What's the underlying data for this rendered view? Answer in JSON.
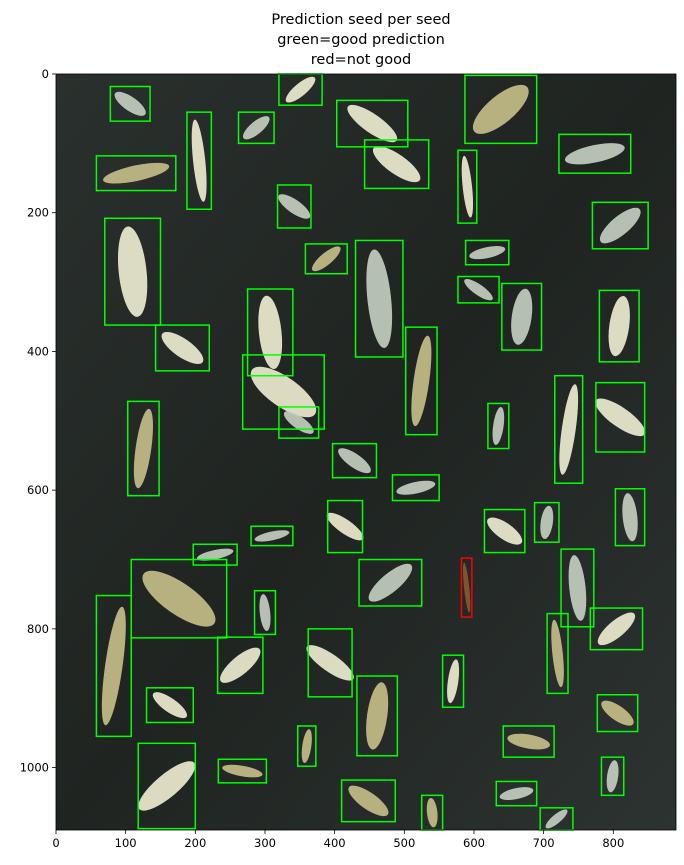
{
  "chart_data": {
    "type": "image-annotation",
    "title_lines": [
      "Prediction seed per seed",
      "green=good prediction",
      "red=not good"
    ],
    "xlim": [
      0,
      890
    ],
    "ylim": [
      1090,
      0
    ],
    "xticks": [
      0,
      100,
      200,
      300,
      400,
      500,
      600,
      700,
      800
    ],
    "yticks": [
      0,
      200,
      400,
      600,
      800,
      1000
    ],
    "colors": {
      "good": "#00ff00",
      "not_good": "#ff0000",
      "background": "#1f2421"
    },
    "boxes": [
      {
        "x0": 78,
        "y0": 18,
        "x1": 135,
        "y1": 68,
        "status": "good",
        "seed": "light"
      },
      {
        "x0": 320,
        "y0": 0,
        "x1": 382,
        "y1": 45,
        "status": "good",
        "seed": "bright"
      },
      {
        "x0": 403,
        "y0": 38,
        "x1": 505,
        "y1": 105,
        "status": "good",
        "seed": "bright"
      },
      {
        "x0": 587,
        "y0": 2,
        "x1": 690,
        "y1": 100,
        "status": "good",
        "seed": "straw"
      },
      {
        "x0": 188,
        "y0": 55,
        "x1": 223,
        "y1": 195,
        "status": "good",
        "seed": "bright"
      },
      {
        "x0": 262,
        "y0": 55,
        "x1": 313,
        "y1": 100,
        "status": "good",
        "seed": "light"
      },
      {
        "x0": 443,
        "y0": 95,
        "x1": 535,
        "y1": 165,
        "status": "good",
        "seed": "bright"
      },
      {
        "x0": 58,
        "y0": 118,
        "x1": 172,
        "y1": 168,
        "status": "good",
        "seed": "straw"
      },
      {
        "x0": 577,
        "y0": 110,
        "x1": 604,
        "y1": 215,
        "status": "good",
        "seed": "bright"
      },
      {
        "x0": 722,
        "y0": 87,
        "x1": 825,
        "y1": 143,
        "status": "good",
        "seed": "light"
      },
      {
        "x0": 318,
        "y0": 160,
        "x1": 366,
        "y1": 222,
        "status": "good",
        "seed": "light"
      },
      {
        "x0": 770,
        "y0": 185,
        "x1": 850,
        "y1": 252,
        "status": "good",
        "seed": "light"
      },
      {
        "x0": 70,
        "y0": 208,
        "x1": 150,
        "y1": 362,
        "status": "good",
        "seed": "bright"
      },
      {
        "x0": 358,
        "y0": 245,
        "x1": 418,
        "y1": 288,
        "status": "good",
        "seed": "straw"
      },
      {
        "x0": 430,
        "y0": 240,
        "x1": 498,
        "y1": 408,
        "status": "good",
        "seed": "light"
      },
      {
        "x0": 588,
        "y0": 240,
        "x1": 650,
        "y1": 275,
        "status": "good",
        "seed": "light"
      },
      {
        "x0": 577,
        "y0": 292,
        "x1": 636,
        "y1": 330,
        "status": "good",
        "seed": "light"
      },
      {
        "x0": 640,
        "y0": 302,
        "x1": 697,
        "y1": 398,
        "status": "good",
        "seed": "light"
      },
      {
        "x0": 275,
        "y0": 310,
        "x1": 340,
        "y1": 435,
        "status": "good",
        "seed": "bright"
      },
      {
        "x0": 780,
        "y0": 312,
        "x1": 837,
        "y1": 415,
        "status": "good",
        "seed": "bright"
      },
      {
        "x0": 143,
        "y0": 362,
        "x1": 220,
        "y1": 428,
        "status": "good",
        "seed": "bright"
      },
      {
        "x0": 502,
        "y0": 365,
        "x1": 547,
        "y1": 520,
        "status": "good",
        "seed": "straw"
      },
      {
        "x0": 268,
        "y0": 405,
        "x1": 385,
        "y1": 512,
        "status": "good",
        "seed": "bright"
      },
      {
        "x0": 716,
        "y0": 435,
        "x1": 756,
        "y1": 590,
        "status": "good",
        "seed": "bright"
      },
      {
        "x0": 775,
        "y0": 445,
        "x1": 845,
        "y1": 545,
        "status": "good",
        "seed": "bright"
      },
      {
        "x0": 103,
        "y0": 472,
        "x1": 148,
        "y1": 608,
        "status": "good",
        "seed": "straw"
      },
      {
        "x0": 320,
        "y0": 480,
        "x1": 377,
        "y1": 525,
        "status": "good",
        "seed": "light"
      },
      {
        "x0": 620,
        "y0": 475,
        "x1": 650,
        "y1": 540,
        "status": "good",
        "seed": "light"
      },
      {
        "x0": 397,
        "y0": 533,
        "x1": 460,
        "y1": 582,
        "status": "good",
        "seed": "light"
      },
      {
        "x0": 483,
        "y0": 578,
        "x1": 550,
        "y1": 615,
        "status": "good",
        "seed": "light"
      },
      {
        "x0": 390,
        "y0": 615,
        "x1": 440,
        "y1": 690,
        "status": "good",
        "seed": "bright"
      },
      {
        "x0": 280,
        "y0": 652,
        "x1": 340,
        "y1": 680,
        "status": "good",
        "seed": "light"
      },
      {
        "x0": 615,
        "y0": 628,
        "x1": 673,
        "y1": 690,
        "status": "good",
        "seed": "bright"
      },
      {
        "x0": 687,
        "y0": 618,
        "x1": 722,
        "y1": 675,
        "status": "good",
        "seed": "light"
      },
      {
        "x0": 803,
        "y0": 598,
        "x1": 845,
        "y1": 680,
        "status": "good",
        "seed": "light"
      },
      {
        "x0": 197,
        "y0": 678,
        "x1": 260,
        "y1": 708,
        "status": "good",
        "seed": "light"
      },
      {
        "x0": 108,
        "y0": 700,
        "x1": 245,
        "y1": 813,
        "status": "good",
        "seed": "straw"
      },
      {
        "x0": 435,
        "y0": 700,
        "x1": 525,
        "y1": 767,
        "status": "good",
        "seed": "light"
      },
      {
        "x0": 725,
        "y0": 685,
        "x1": 772,
        "y1": 797,
        "status": "good",
        "seed": "light"
      },
      {
        "x0": 58,
        "y0": 752,
        "x1": 108,
        "y1": 955,
        "status": "good",
        "seed": "straw"
      },
      {
        "x0": 285,
        "y0": 745,
        "x1": 315,
        "y1": 808,
        "status": "good",
        "seed": "light"
      },
      {
        "x0": 767,
        "y0": 770,
        "x1": 842,
        "y1": 830,
        "status": "good",
        "seed": "bright"
      },
      {
        "x0": 705,
        "y0": 778,
        "x1": 735,
        "y1": 893,
        "status": "good",
        "seed": "straw"
      },
      {
        "x0": 232,
        "y0": 812,
        "x1": 297,
        "y1": 893,
        "status": "good",
        "seed": "bright"
      },
      {
        "x0": 362,
        "y0": 800,
        "x1": 425,
        "y1": 898,
        "status": "good",
        "seed": "bright"
      },
      {
        "x0": 555,
        "y0": 838,
        "x1": 585,
        "y1": 913,
        "status": "good",
        "seed": "bright"
      },
      {
        "x0": 130,
        "y0": 885,
        "x1": 197,
        "y1": 935,
        "status": "good",
        "seed": "bright"
      },
      {
        "x0": 432,
        "y0": 868,
        "x1": 490,
        "y1": 983,
        "status": "good",
        "seed": "straw"
      },
      {
        "x0": 777,
        "y0": 895,
        "x1": 835,
        "y1": 948,
        "status": "good",
        "seed": "straw"
      },
      {
        "x0": 347,
        "y0": 940,
        "x1": 373,
        "y1": 998,
        "status": "good",
        "seed": "straw"
      },
      {
        "x0": 642,
        "y0": 940,
        "x1": 715,
        "y1": 985,
        "status": "good",
        "seed": "straw"
      },
      {
        "x0": 118,
        "y0": 965,
        "x1": 200,
        "y1": 1088,
        "status": "good",
        "seed": "bright"
      },
      {
        "x0": 233,
        "y0": 988,
        "x1": 302,
        "y1": 1022,
        "status": "good",
        "seed": "straw"
      },
      {
        "x0": 783,
        "y0": 985,
        "x1": 815,
        "y1": 1040,
        "status": "good",
        "seed": "light"
      },
      {
        "x0": 410,
        "y0": 1018,
        "x1": 487,
        "y1": 1078,
        "status": "good",
        "seed": "straw"
      },
      {
        "x0": 632,
        "y0": 1020,
        "x1": 690,
        "y1": 1055,
        "status": "good",
        "seed": "light"
      },
      {
        "x0": 525,
        "y0": 1040,
        "x1": 555,
        "y1": 1090,
        "status": "good",
        "seed": "straw"
      },
      {
        "x0": 695,
        "y0": 1058,
        "x1": 742,
        "y1": 1090,
        "status": "good",
        "seed": "light"
      },
      {
        "x0": 582,
        "y0": 698,
        "x1": 597,
        "y1": 783,
        "status": "not_good",
        "seed": "brown"
      }
    ]
  }
}
